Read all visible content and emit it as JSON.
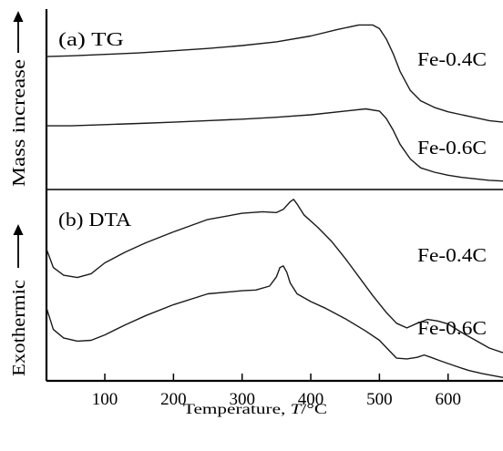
{
  "chart_data": [
    {
      "panel_label": "(a) TG",
      "type": "line",
      "ylabel": "Mass increase",
      "ylabel_arrow": "up",
      "y_units": "arbitrary (no ticks)",
      "series": [
        {
          "name": "Fe-0.4C",
          "x": [
            15,
            50,
            100,
            150,
            200,
            250,
            300,
            350,
            400,
            440,
            470,
            490,
            500,
            510,
            520,
            530,
            545,
            560,
            580,
            600,
            620,
            640,
            660,
            680
          ],
          "y": [
            8.9,
            8.95,
            9.05,
            9.15,
            9.3,
            9.45,
            9.65,
            9.9,
            10.3,
            10.75,
            11.05,
            11.05,
            10.8,
            10.1,
            9.1,
            7.9,
            6.6,
            5.9,
            5.45,
            5.15,
            4.95,
            4.75,
            4.55,
            4.45
          ]
        },
        {
          "name": "Fe-0.6C",
          "x": [
            15,
            50,
            100,
            150,
            200,
            250,
            300,
            350,
            400,
            450,
            480,
            500,
            510,
            520,
            530,
            545,
            560,
            580,
            600,
            620,
            640,
            660,
            680
          ],
          "y": [
            4.2,
            4.2,
            4.28,
            4.36,
            4.45,
            4.55,
            4.65,
            4.78,
            4.95,
            5.2,
            5.35,
            5.2,
            4.7,
            3.9,
            2.95,
            1.95,
            1.35,
            1.05,
            0.85,
            0.7,
            0.6,
            0.5,
            0.45
          ]
        }
      ]
    },
    {
      "panel_label": "(b) DTA",
      "type": "line",
      "ylabel": "Exothermic",
      "ylabel_arrow": "up",
      "xlabel": "Temperature, T/°C",
      "xlim": [
        15,
        680
      ],
      "xticks": [
        100,
        200,
        300,
        400,
        500,
        600
      ],
      "series": [
        {
          "name": "Fe-0.4C",
          "x": [
            15,
            25,
            40,
            60,
            80,
            100,
            130,
            160,
            200,
            250,
            300,
            330,
            350,
            360,
            370,
            375,
            380,
            390,
            410,
            430,
            450,
            470,
            490,
            510,
            525,
            540,
            555,
            570,
            585,
            600,
            620,
            640,
            660,
            680
          ],
          "y": [
            8.4,
            7.2,
            6.7,
            6.55,
            6.8,
            7.5,
            8.2,
            8.8,
            9.5,
            10.3,
            10.7,
            10.8,
            10.75,
            10.95,
            11.45,
            11.6,
            11.3,
            10.6,
            9.8,
            8.9,
            7.8,
            6.6,
            5.4,
            4.3,
            3.6,
            3.3,
            3.6,
            3.85,
            3.75,
            3.55,
            3.0,
            2.5,
            2.0,
            1.7
          ]
        },
        {
          "name": "Fe-0.6C",
          "x": [
            15,
            25,
            40,
            60,
            80,
            100,
            130,
            160,
            200,
            250,
            300,
            320,
            340,
            350,
            355,
            360,
            365,
            370,
            380,
            400,
            420,
            450,
            480,
            500,
            515,
            525,
            540,
            555,
            565,
            575,
            590,
            610,
            630,
            650,
            680
          ],
          "y": [
            4.6,
            3.2,
            2.65,
            2.45,
            2.5,
            2.85,
            3.5,
            4.1,
            4.8,
            5.5,
            5.7,
            5.75,
            6.0,
            6.6,
            7.2,
            7.3,
            6.9,
            6.2,
            5.5,
            5.0,
            4.6,
            3.9,
            3.1,
            2.5,
            1.8,
            1.35,
            1.3,
            1.4,
            1.55,
            1.4,
            1.15,
            0.85,
            0.55,
            0.35,
            0.1
          ]
        }
      ]
    }
  ]
}
